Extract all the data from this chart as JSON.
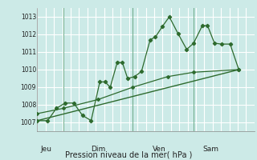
{
  "bg_color": "#cceae7",
  "grid_color": "#ffffff",
  "line_color": "#2d6a2d",
  "title": "Pression niveau de la mer( hPa )",
  "ylabel_ticks": [
    1007,
    1008,
    1009,
    1010,
    1011,
    1012,
    1013
  ],
  "xlabels": [
    "Jeu",
    "Dim",
    "Ven",
    "Sam"
  ],
  "xlabels_pos": [
    0.5,
    3.5,
    7.0,
    10.0
  ],
  "xvlines": [
    1.5,
    5.5,
    9.0
  ],
  "ylim": [
    1006.5,
    1013.5
  ],
  "xlim": [
    0,
    12.5
  ],
  "series1": [
    [
      0,
      1007.1
    ],
    [
      0.6,
      1007.1
    ],
    [
      1.1,
      1007.8
    ],
    [
      1.6,
      1008.1
    ],
    [
      2.1,
      1008.1
    ],
    [
      2.6,
      1007.4
    ],
    [
      3.1,
      1007.1
    ],
    [
      3.6,
      1009.3
    ],
    [
      3.9,
      1009.3
    ],
    [
      4.2,
      1009.0
    ],
    [
      4.6,
      1010.4
    ],
    [
      4.9,
      1010.4
    ],
    [
      5.2,
      1009.5
    ],
    [
      5.6,
      1009.6
    ],
    [
      6.0,
      1009.9
    ],
    [
      6.5,
      1011.7
    ],
    [
      6.8,
      1011.85
    ],
    [
      7.2,
      1012.45
    ],
    [
      7.6,
      1013.0
    ],
    [
      8.1,
      1012.05
    ],
    [
      8.6,
      1011.15
    ],
    [
      9.0,
      1011.5
    ],
    [
      9.5,
      1012.5
    ],
    [
      9.8,
      1012.5
    ],
    [
      10.2,
      1011.5
    ],
    [
      10.6,
      1011.45
    ],
    [
      11.1,
      1011.45
    ],
    [
      11.6,
      1010.0
    ]
  ],
  "series2": [
    [
      0,
      1007.1
    ],
    [
      11.6,
      1010.0
    ]
  ],
  "series3": [
    [
      0,
      1007.5
    ],
    [
      1.5,
      1007.8
    ],
    [
      3.5,
      1008.3
    ],
    [
      5.5,
      1009.0
    ],
    [
      7.5,
      1009.6
    ],
    [
      9.0,
      1009.85
    ],
    [
      11.6,
      1010.0
    ]
  ]
}
